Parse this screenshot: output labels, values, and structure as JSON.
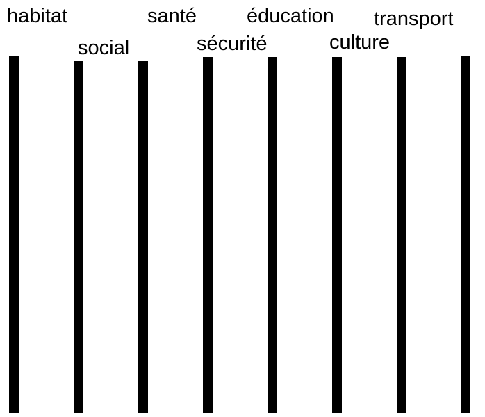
{
  "labels": [
    "habitat",
    "social",
    "santé",
    "sécurité",
    "éducation",
    "culture",
    "transport"
  ]
}
